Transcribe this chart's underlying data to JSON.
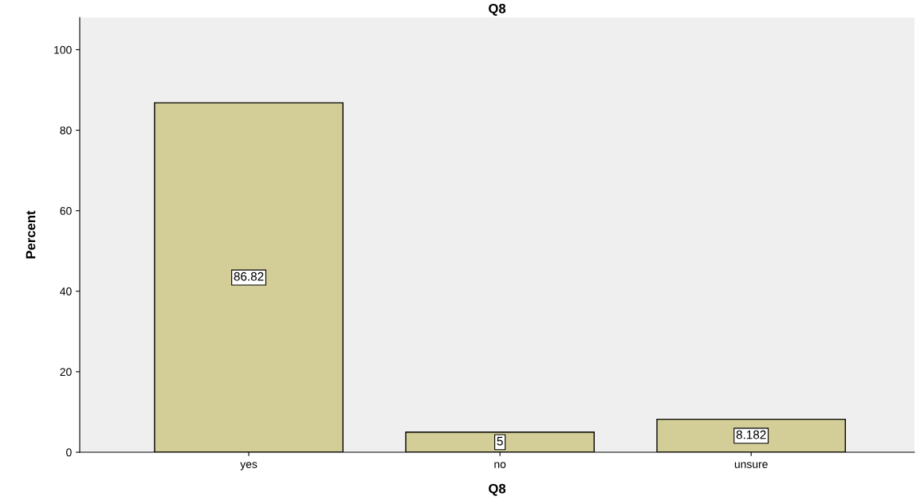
{
  "chart_data": {
    "type": "bar",
    "title": "Q8",
    "xlabel": "Q8",
    "ylabel": "Percent",
    "categories": [
      "yes",
      "no",
      "unsure"
    ],
    "values": [
      86.82,
      5,
      8.182
    ],
    "color": "#d3ce97",
    "ylim": [
      0,
      108
    ],
    "yticks": [
      0,
      20,
      40,
      60,
      80,
      100
    ],
    "data_labels": true,
    "grid": false,
    "legend": false
  }
}
